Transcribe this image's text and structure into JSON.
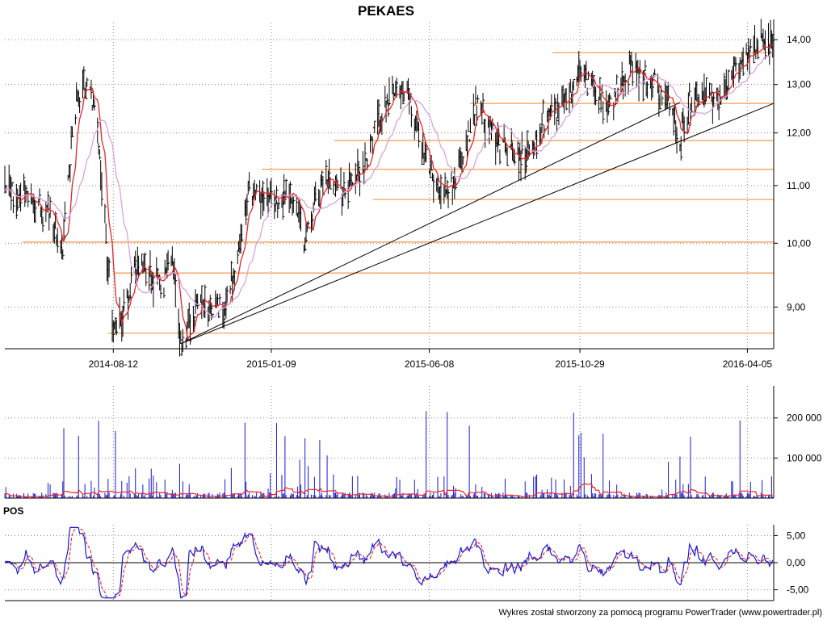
{
  "chart_data": [
    {
      "panel": "price",
      "type": "candlestick",
      "title": "PEKAES",
      "x_ticks": [
        "2014-08-12",
        "2015-01-09",
        "2015-06-08",
        "2015-10-29",
        "2016-04-05"
      ],
      "y_ticks": [
        "9,00",
        "10,00",
        "11,00",
        "12,00",
        "13,00",
        "14,00"
      ],
      "y_scale": "log",
      "ylim": [
        8.4,
        14.4
      ],
      "date_range": [
        "2014-05-01",
        "2016-04-30"
      ],
      "grid": true,
      "series": [
        {
          "kind": "moving_average_short",
          "color": "#e8262b"
        },
        {
          "kind": "moving_average_long",
          "color": "#d9a2dc"
        }
      ],
      "support_resistance_levels": [
        8.62,
        9.52,
        10.02,
        10.75,
        11.3,
        11.85,
        12.6,
        13.7
      ],
      "trend_lines": [
        {
          "from": [
            "2014-10-15",
            8.47
          ],
          "to": [
            "2016-02-01",
            12.62
          ]
        },
        {
          "from": [
            "2014-10-15",
            8.47
          ],
          "to": [
            "2016-04-30",
            12.6
          ]
        }
      ],
      "colors": {
        "bars": "#000000",
        "levels": "#f5a25a",
        "trend": "#000000"
      }
    },
    {
      "panel": "volume",
      "type": "bar",
      "y_ticks": [
        "100 000",
        "200 000"
      ],
      "ylim": [
        0,
        280000
      ],
      "colors": {
        "bars": "#1a1ad6",
        "average": "#e8262b"
      }
    },
    {
      "panel": "oscillator",
      "type": "line",
      "label": "POS",
      "y_ticks": [
        "5,00",
        "0,00",
        "-5,00"
      ],
      "ylim": [
        -7,
        7
      ],
      "series": [
        {
          "kind": "oscillator",
          "color": "#1a1ad6",
          "style": "solid"
        },
        {
          "kind": "signal",
          "color": "#e8262b",
          "style": "dashed"
        }
      ]
    }
  ],
  "footer": "Wykres został stworzony za pomocą programu PowerTrader (www.powertrader.pl)"
}
